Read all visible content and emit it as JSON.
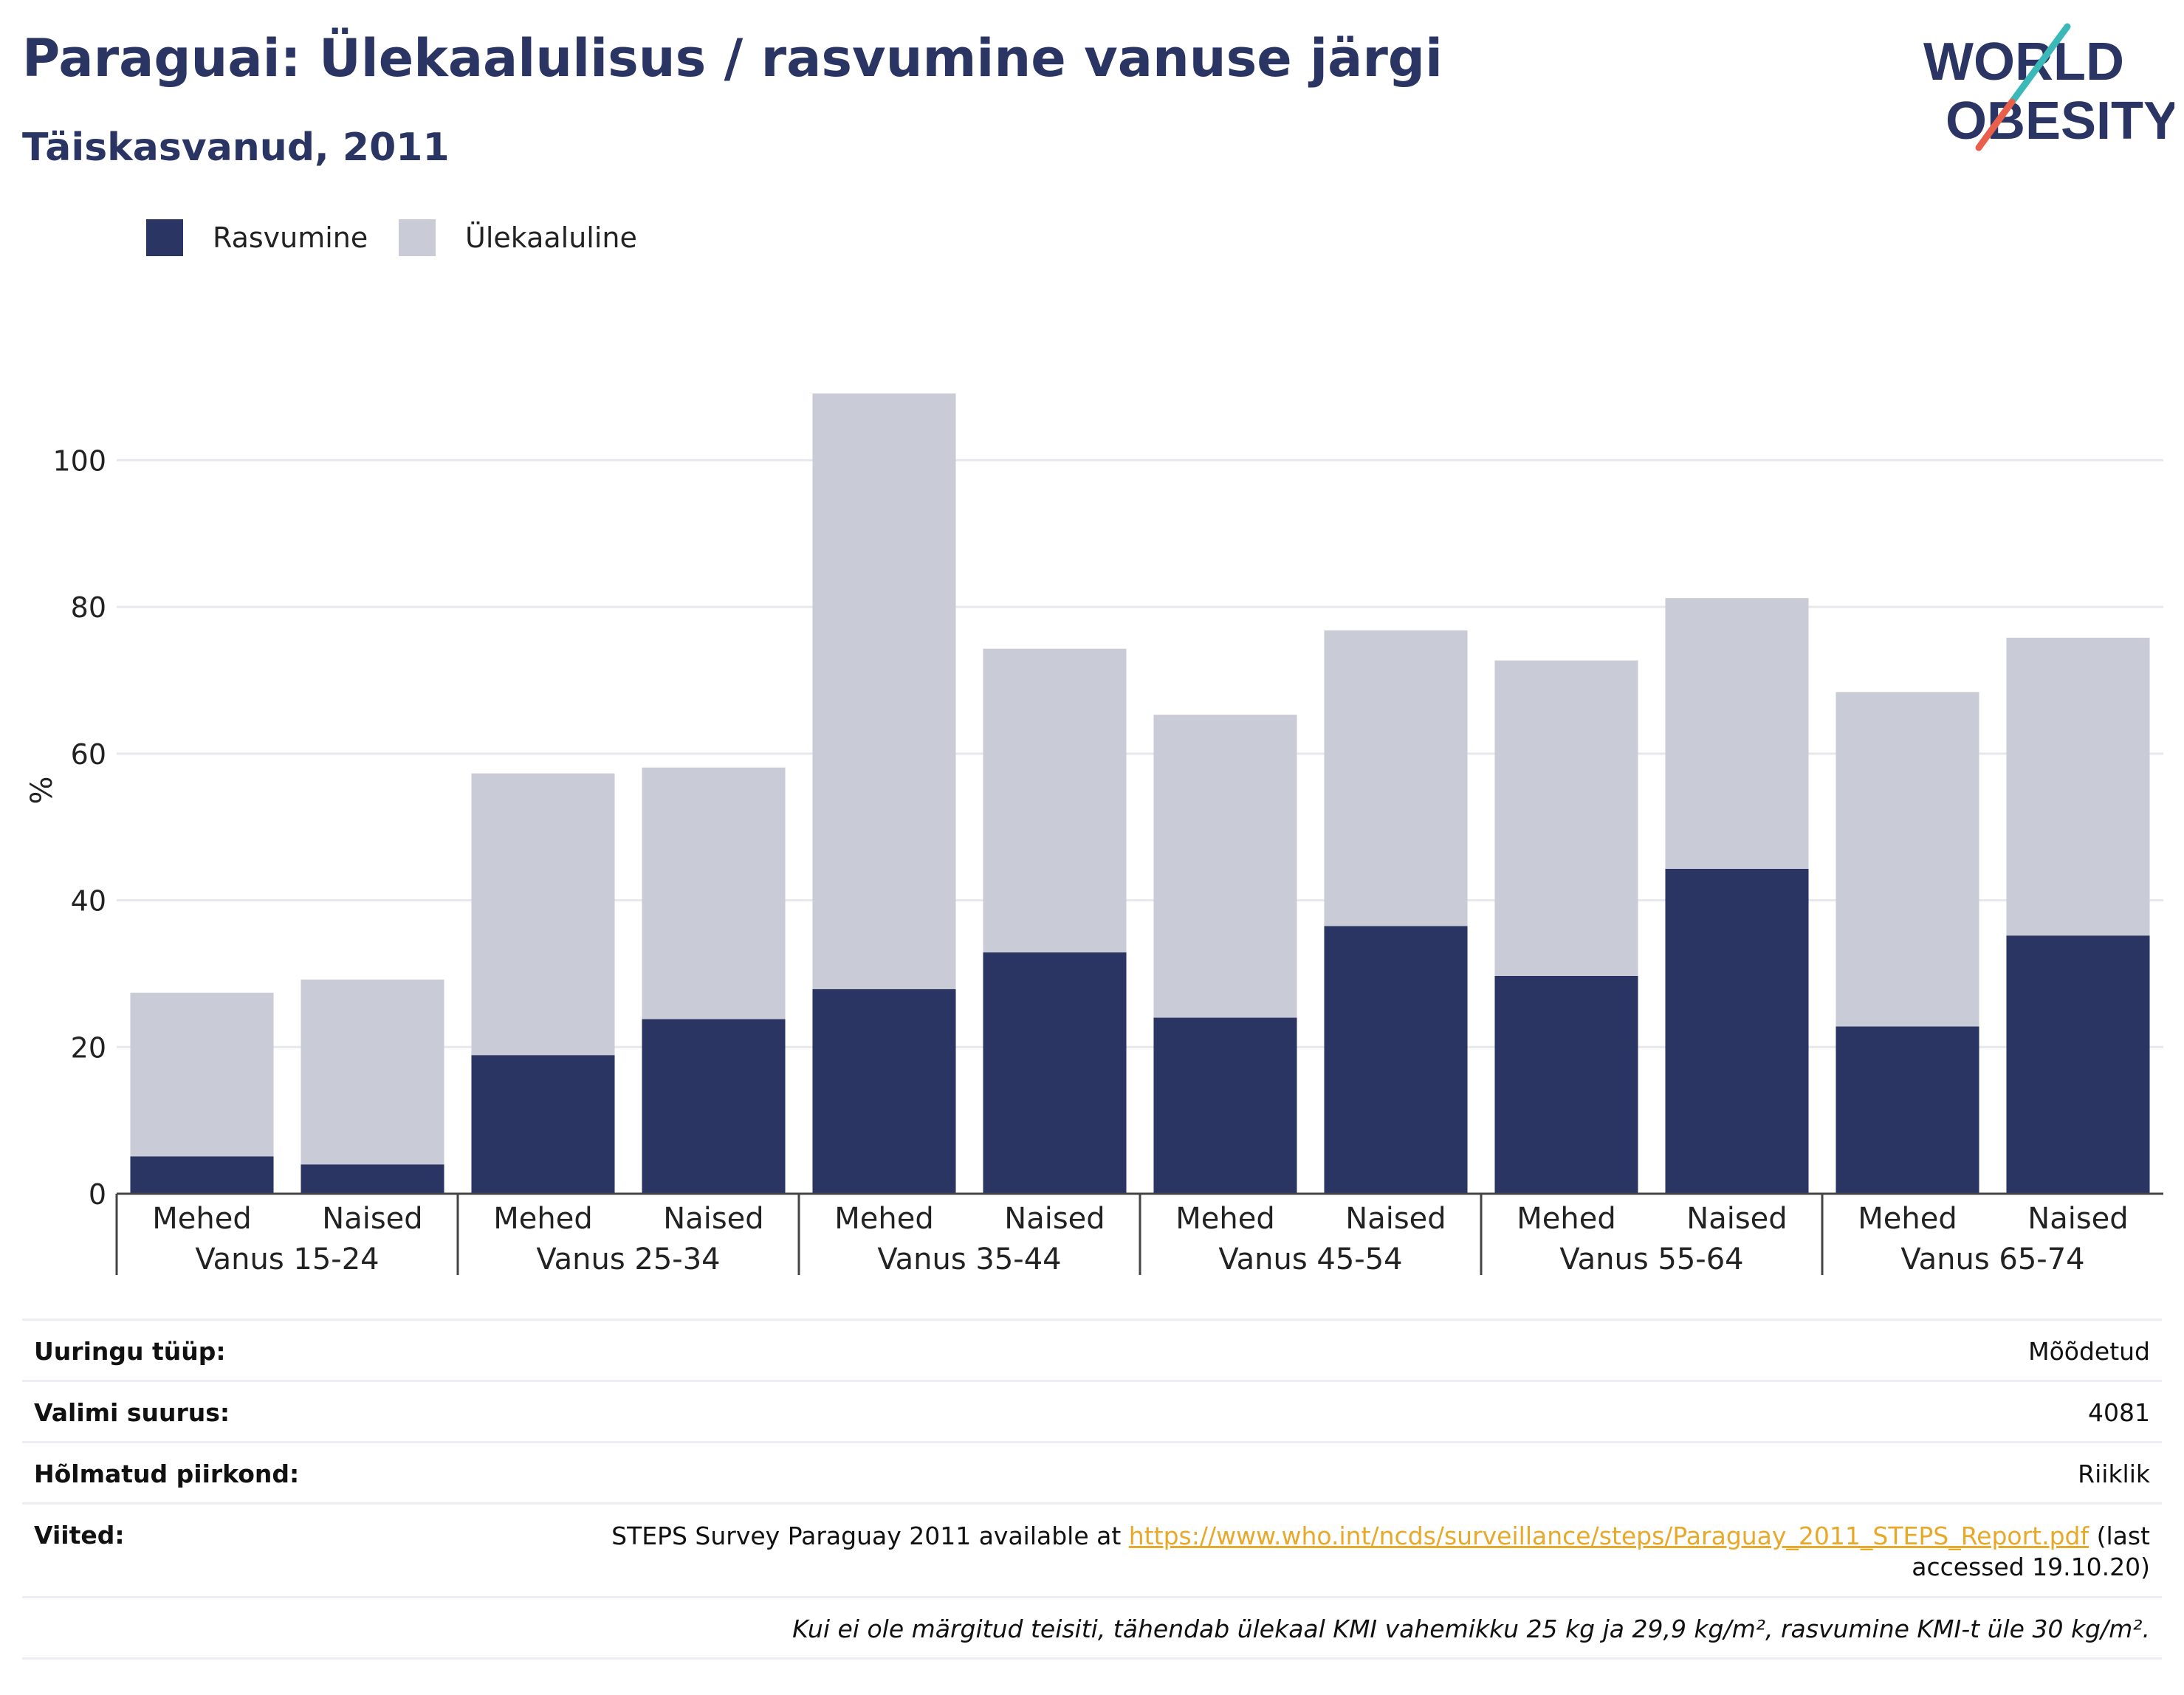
{
  "title": "Paraguai: Ülekaalulisus / rasvumine vanuse järgi",
  "subtitle": "Täiskasvanud, 2011",
  "logo": {
    "line1": "WORLD",
    "line2": "OBESITY",
    "colors": {
      "text": "#2a3563",
      "slash_teal": "#3bb8b8",
      "slash_red": "#e8604c"
    }
  },
  "chart_data": {
    "type": "bar",
    "stacked": true,
    "ylabel": "%",
    "ylim": [
      0,
      110
    ],
    "yticks": [
      0,
      20,
      40,
      60,
      80,
      100
    ],
    "grid": true,
    "legend_position": "top-left",
    "groups": [
      "Vanus 15-24",
      "Vanus 25-34",
      "Vanus 35-44",
      "Vanus 45-54",
      "Vanus 55-64",
      "Vanus 65-74"
    ],
    "subcategories": [
      "Mehed",
      "Naised"
    ],
    "categories": [
      "Mehed",
      "Naised",
      "Mehed",
      "Naised",
      "Mehed",
      "Naised",
      "Mehed",
      "Naised",
      "Mehed",
      "Naised",
      "Mehed",
      "Naised"
    ],
    "series": [
      {
        "name": "Rasvumine",
        "color": "#2a3563",
        "values": [
          5.1,
          4.0,
          18.9,
          23.8,
          27.9,
          32.9,
          24.0,
          36.5,
          29.7,
          44.3,
          22.8,
          35.2
        ]
      },
      {
        "name": "Ülekaaluline",
        "color": "#c9cbd6",
        "values": [
          22.3,
          25.2,
          38.4,
          34.3,
          81.2,
          41.4,
          41.3,
          40.3,
          43.0,
          36.9,
          45.6,
          40.6
        ]
      }
    ]
  },
  "meta": [
    {
      "key": "Uuringu tüüp:",
      "value": "Mõõdetud"
    },
    {
      "key": "Valimi suurus:",
      "value": "4081"
    },
    {
      "key": "Hõlmatud piirkond:",
      "value": "Riiklik"
    }
  ],
  "references": {
    "key": "Viited:",
    "text_before": "STEPS Survey Paraguay 2011 available at ",
    "link": "https://www.who.int/ncds/surveillance/steps/Paraguay_2011_STEPS_Report.pdf",
    "text_after": " (last",
    "line2": "accessed 19.10.20)"
  },
  "note": "Kui ei ole märgitud teisiti, tähendab ülekaal KMI vahemikku 25 kg ja 29,9 kg/m², rasvumine KMI-t üle 30 kg/m²."
}
